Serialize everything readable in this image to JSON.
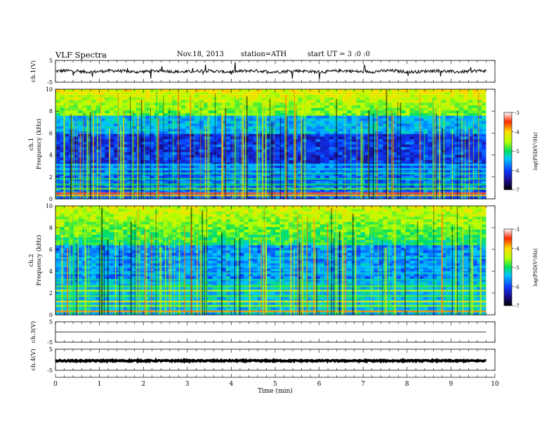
{
  "header": {
    "title": "VLF  Spectra",
    "date": "Nov.18, 2013",
    "station": "station=ATH",
    "start_label": "start  UT  =   3  :0  :0"
  },
  "chart_data": [
    {
      "panel": "ch1-waveform",
      "type": "line",
      "ylabel": "ch.1(V)",
      "ylim": [
        -5,
        5
      ],
      "y_ticks": [
        "5",
        "-5"
      ],
      "xlim": [
        0,
        10
      ],
      "baseline": 0,
      "noise_amplitude": 0.7,
      "end_time": 9.8,
      "color": "#000000"
    },
    {
      "panel": "ch1-spectrogram",
      "type": "heatmap",
      "ylabel": "Frequency  (kHz)",
      "ylabel2": "ch.1",
      "ylim": [
        0,
        10
      ],
      "y_ticks": [
        "0",
        "2",
        "4",
        "6",
        "8",
        "10"
      ],
      "xlim": [
        0,
        10
      ],
      "end_time": 9.8,
      "colorbar": {
        "label": "log(PSD(V²/Hz)",
        "range": [
          -7,
          -3
        ],
        "ticks": [
          "-3",
          "-4",
          "-5",
          "-6",
          "-7"
        ]
      }
    },
    {
      "panel": "ch2-spectrogram",
      "type": "heatmap",
      "ylabel": "Frequency  (kHz)",
      "ylabel2": "ch.2",
      "ylim": [
        0,
        10
      ],
      "y_ticks": [
        "0",
        "2",
        "4",
        "6",
        "8",
        "10"
      ],
      "xlim": [
        0,
        10
      ],
      "end_time": 9.8,
      "colorbar": {
        "label": "log(PSD(V²/Hz)",
        "range": [
          -7,
          -3
        ],
        "ticks": [
          "-3",
          "-4",
          "-5",
          "-6",
          "-7"
        ]
      }
    },
    {
      "panel": "ch3-waveform",
      "type": "line",
      "ylabel": "ch.3(V)",
      "ylim": [
        -5,
        5
      ],
      "y_ticks": [
        "5",
        "-5"
      ],
      "xlim": [
        0,
        10
      ],
      "baseline": 0,
      "noise_amplitude": 0.05,
      "end_time": 9.8,
      "color": "#000000"
    },
    {
      "panel": "ch4-waveform",
      "type": "line",
      "ylabel": "ch.4(V)",
      "ylim": [
        -5,
        5
      ],
      "y_ticks": [
        "5",
        "-5"
      ],
      "xlim": [
        0,
        10
      ],
      "baseline": -0.5,
      "noise_amplitude": 0.3,
      "end_time": 9.8,
      "color": "#000000"
    }
  ],
  "x_axis": {
    "label": "Time  (min)",
    "ticks": [
      "0",
      "1",
      "2",
      "3",
      "4",
      "5",
      "6",
      "7",
      "8",
      "9",
      "10"
    ]
  }
}
